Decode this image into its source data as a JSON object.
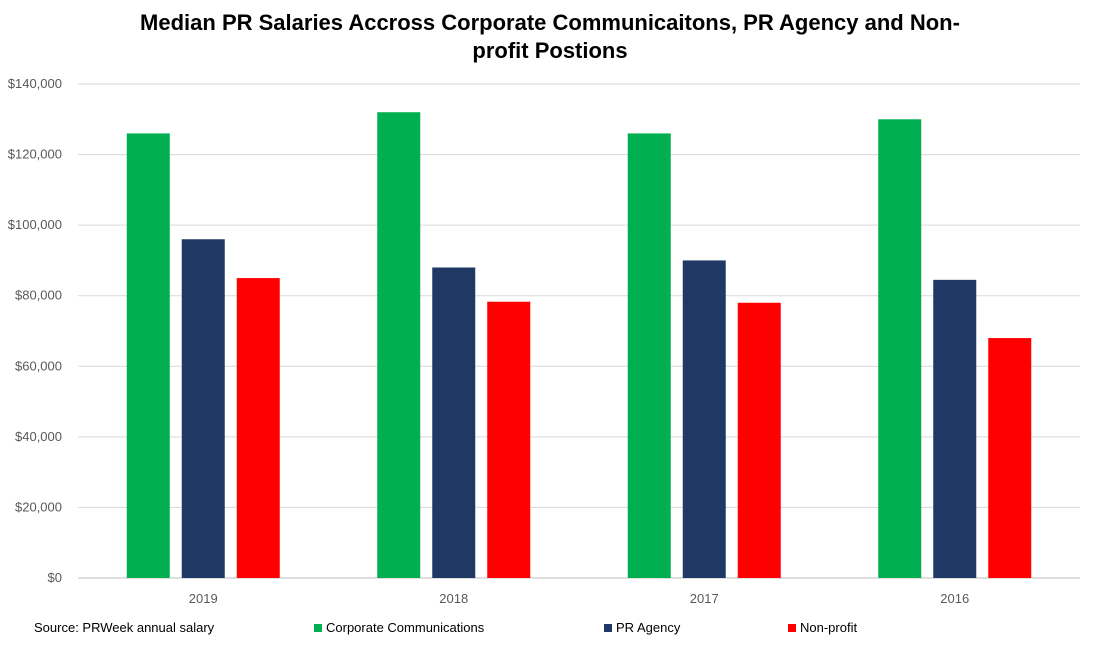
{
  "chart_data": {
    "type": "bar",
    "title": "Median PR Salaries Accross Corporate Communicaitons, PR Agency and Non-profit Postions",
    "title_lines": [
      "Median PR Salaries Accross Corporate Communicaitons, PR Agency and Non-",
      "profit Postions"
    ],
    "categories": [
      "2019",
      "2018",
      "2017",
      "2016"
    ],
    "series": [
      {
        "name": "Corporate Communications",
        "color": "#00B050",
        "values": [
          126000,
          132000,
          126000,
          130000
        ]
      },
      {
        "name": "PR Agency",
        "color": "#1F3864",
        "values": [
          96000,
          88000,
          90000,
          84500
        ]
      },
      {
        "name": "Non-profit",
        "color": "#FF0000",
        "values": [
          85000,
          78300,
          78000,
          68000
        ]
      }
    ],
    "ylim": [
      0,
      140000
    ],
    "yticks": [
      0,
      20000,
      40000,
      60000,
      80000,
      100000,
      120000,
      140000
    ],
    "ytick_labels": [
      "$0",
      "$20,000",
      "$40,000",
      "$60,000",
      "$80,000",
      "$100,000",
      "$120,000",
      "$140,000"
    ],
    "grid": true,
    "legend_position": "bottom",
    "source_note": "Source:  PRWeek annual salary"
  }
}
